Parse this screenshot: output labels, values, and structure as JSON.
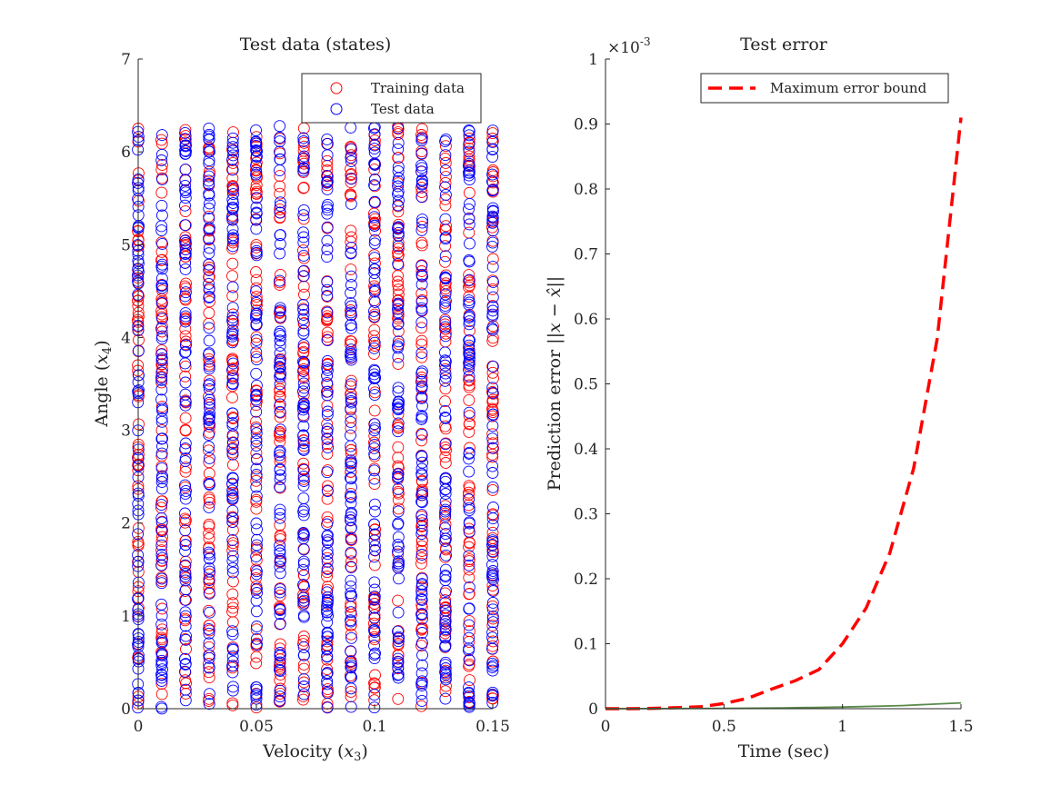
{
  "chart_data": [
    {
      "type": "scatter",
      "title": "Test data (states)",
      "xlabel": "Velocity (x3)",
      "xlabel_prefix": "Velocity (",
      "xlabel_var": "x",
      "xlabel_sub": "3",
      "xlabel_suffix": ")",
      "ylabel": "Angle (x4)",
      "ylabel_prefix": "Angle (",
      "ylabel_var": "x",
      "ylabel_sub": "4",
      "ylabel_suffix": ")",
      "xlim": [
        0,
        0.15
      ],
      "ylim": [
        0,
        7
      ],
      "xticks": [
        "0",
        "0.05",
        "0.1",
        "0.15"
      ],
      "yticks": [
        "0",
        "1",
        "2",
        "3",
        "4",
        "5",
        "6",
        "7"
      ],
      "grid": false,
      "legend_position": "top-right",
      "marker": "open-circle",
      "x_columns": [
        0,
        0.01,
        0.02,
        0.03,
        0.04,
        0.05,
        0.06,
        0.07,
        0.08,
        0.09,
        0.1,
        0.11,
        0.12,
        0.13,
        0.14,
        0.15
      ],
      "series": [
        {
          "name": "Training data",
          "color": "#ff0000",
          "y_range": [
            0,
            6.28
          ],
          "note_points_per_column": 60
        },
        {
          "name": "Test data",
          "color": "#0000ff",
          "y_range": [
            0,
            6.28
          ],
          "note_points_per_column": 70
        }
      ]
    },
    {
      "type": "line",
      "title": "Test error",
      "xlabel": "Time (sec)",
      "ylabel": "Prediction error ||x − x̂||",
      "ylabel_text": "Prediction error ",
      "ylabel_math": "||x − x̂||",
      "y_exponent_label": "×10",
      "y_exponent_power": "-3",
      "xlim": [
        0,
        1.5
      ],
      "ylim": [
        0,
        1
      ],
      "xticks": [
        "0",
        "0.5",
        "1",
        "1.5"
      ],
      "yticks": [
        "0",
        "0.1",
        "0.2",
        "0.3",
        "0.4",
        "0.5",
        "0.6",
        "0.7",
        "0.8",
        "0.9",
        "1"
      ],
      "grid": false,
      "legend_position": "top-right",
      "series": [
        {
          "name": "Maximum error bound",
          "color": "#ff0000",
          "style": "dashed",
          "x": [
            0,
            0.1,
            0.2,
            0.3,
            0.4,
            0.5,
            0.6,
            0.7,
            0.8,
            0.9,
            1.0,
            1.1,
            1.2,
            1.3,
            1.4,
            1.5
          ],
          "y": [
            0,
            0,
            0.0005,
            0.0015,
            0.003,
            0.008,
            0.016,
            0.03,
            0.043,
            0.06,
            0.1,
            0.155,
            0.24,
            0.37,
            0.57,
            0.91
          ]
        },
        {
          "color": "#5a8a4a",
          "style": "solid",
          "x": [
            0,
            0.25,
            0.5,
            0.75,
            1.0,
            1.25,
            1.5
          ],
          "y": [
            0,
            0.0001,
            0.0005,
            0.0012,
            0.0025,
            0.0048,
            0.009
          ]
        }
      ]
    }
  ]
}
